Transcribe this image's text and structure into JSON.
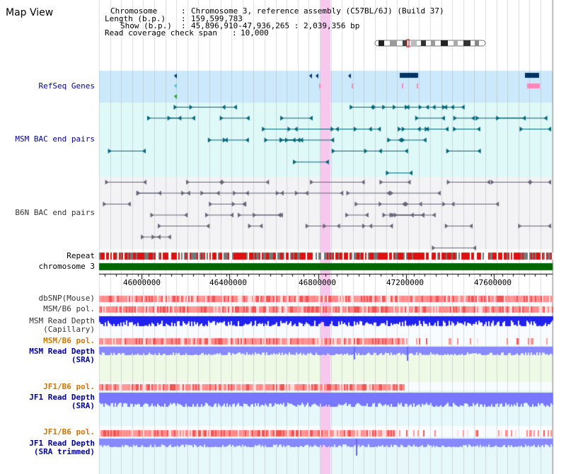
{
  "title": "Map View",
  "info": {
    "chromosome_key": "Chromosome",
    "chromosome_val": "Chromosome 3, reference assembly (C57BL/6J) (Build 37)",
    "length_key": "Length (b.p.)",
    "length_val": "159,599,783",
    "show_key": "Show (b.p.)",
    "show_val": "45,896,910-47,936,265 : 2,039,356 bp",
    "coverage_key": "Read coverage check span",
    "coverage_val": "10,000"
  },
  "tracks": {
    "refseq": "RefSeq Genes",
    "msm_bac": "MSM BAC end pairs",
    "b6n_bac": "B6N BAC end pairs",
    "repeat": "Repeat",
    "chromosome": "chromosome 3",
    "dbsnp": "dbSNP(Mouse)",
    "msm_b6_pol": "MSM/B6 pol.",
    "msm_depth_cap_1": "MSM Read Depth",
    "msm_depth_cap_2": "(Capillary)",
    "msm_b6_pol_sra": "MSM/B6 pol.",
    "msm_depth_sra_1": "MSM Read Depth",
    "msm_depth_sra_2": "(SRA)",
    "jf1_b6_pol": "JF1/B6 pol.",
    "jf1_depth_sra_1": "JF1 Read Depth",
    "jf1_depth_sra_2": "(SRA)",
    "jf1_b6_pol_trim": "JF1/B6 pol.",
    "jf1_depth_trim_1": "JF1 Read Depth",
    "jf1_depth_trim_2": "(SRA trimmed)"
  },
  "ruler": {
    "ticks": [
      "46000000",
      "46400000",
      "46800000",
      "47200000",
      "47600000"
    ]
  },
  "colors": {
    "label_blue": "#000099",
    "label_orange": "#cc7700",
    "label_black": "#333333",
    "refseq_bg": "#cce9fb",
    "bac_bg": "#dff8f8",
    "b6n_bg": "#f3f3f6",
    "highlight": "#f7c8ee",
    "chromosome_green": "#006600",
    "depth_blue": "#3333ff",
    "sra_bg": "#eef9e6"
  }
}
